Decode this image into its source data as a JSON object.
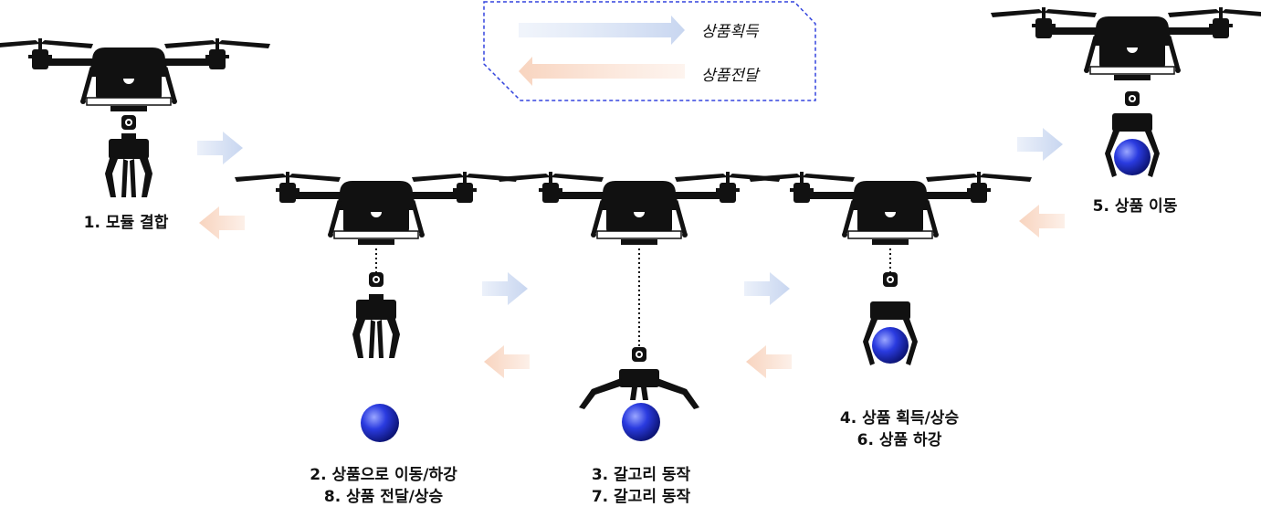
{
  "legend": {
    "acquire_label": "상품획득",
    "deliver_label": "상품전달",
    "acquire_color": "#cfdcf2",
    "deliver_color": "#fadbc8",
    "border_color": "#3344dd"
  },
  "steps": [
    {
      "line1": "1. 모듈 결합"
    },
    {
      "line1": "2. 상품으로 이동/하강",
      "line2": "8. 상품 전달/상승"
    },
    {
      "line1": "3. 갈고리 동작",
      "line2": "7. 갈고리 동작"
    },
    {
      "line1": "4. 상품 획득/상승",
      "line2": "6. 상품 하강"
    },
    {
      "line1": "5. 상품 이동"
    }
  ],
  "colors": {
    "drone": "#111111",
    "ball": "#2233cc",
    "arrow_forward": "#c8d6f0",
    "arrow_back": "#f8d4bf"
  }
}
